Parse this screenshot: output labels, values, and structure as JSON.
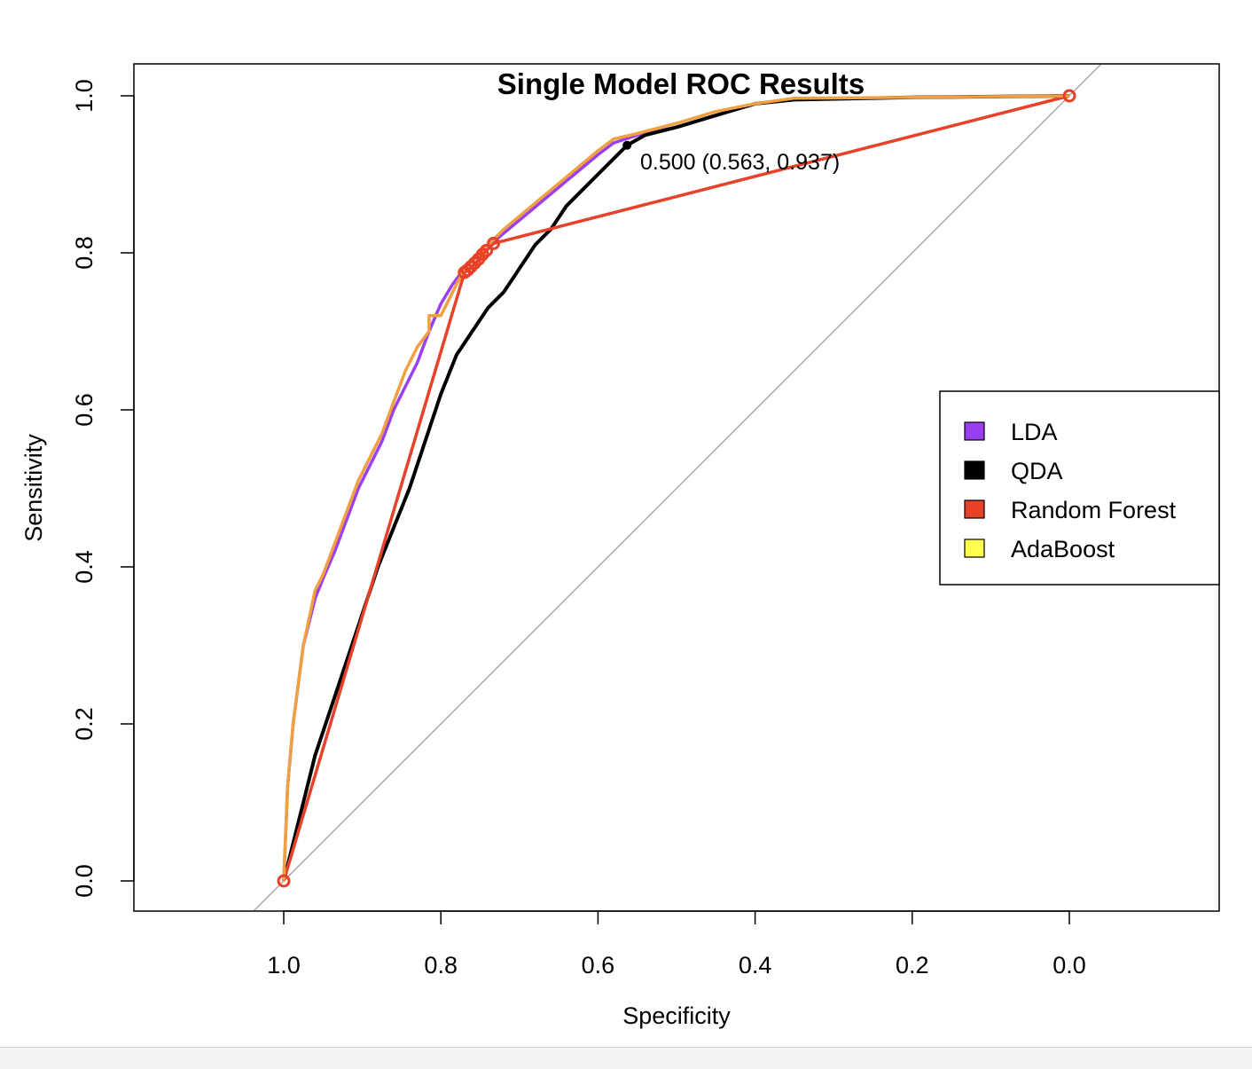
{
  "chart_data": {
    "type": "line",
    "title": "Single Model ROC Results",
    "xlabel": "Specificity",
    "ylabel": "Sensitivity",
    "xlim": [
      1.17,
      -0.19
    ],
    "ylim": [
      -0.04,
      1.04
    ],
    "x_reversed": true,
    "xticks": [
      1.0,
      0.8,
      0.6,
      0.4,
      0.2,
      0.0
    ],
    "xtick_labels": [
      "1.0",
      "0.8",
      "0.6",
      "0.4",
      "0.2",
      "0.0"
    ],
    "yticks": [
      0.0,
      0.2,
      0.4,
      0.6,
      0.8,
      1.0
    ],
    "ytick_labels": [
      "0.0",
      "0.2",
      "0.4",
      "0.6",
      "0.8",
      "1.0"
    ],
    "legend": {
      "placement": "right",
      "entries": [
        {
          "label": "LDA",
          "color": "#9a3ff0"
        },
        {
          "label": "QDA",
          "color": "#000000"
        },
        {
          "label": "Random Forest",
          "color": "#e8412a"
        },
        {
          "label": "AdaBoost",
          "color": "#ffff4d"
        }
      ]
    },
    "diagonal": {
      "color": "#a9a9a9",
      "from": [
        1,
        0
      ],
      "to": [
        0,
        1
      ]
    },
    "series": [
      {
        "color": "#9a3ff0",
        "points": [
          [
            1.0,
            0.0
          ],
          [
            0.995,
            0.12
          ],
          [
            0.988,
            0.2
          ],
          [
            0.975,
            0.3
          ],
          [
            0.96,
            0.36
          ],
          [
            0.95,
            0.385
          ],
          [
            0.935,
            0.42
          ],
          [
            0.92,
            0.46
          ],
          [
            0.905,
            0.5
          ],
          [
            0.89,
            0.53
          ],
          [
            0.875,
            0.56
          ],
          [
            0.86,
            0.6
          ],
          [
            0.845,
            0.63
          ],
          [
            0.83,
            0.66
          ],
          [
            0.815,
            0.7
          ],
          [
            0.8,
            0.735
          ],
          [
            0.785,
            0.76
          ],
          [
            0.77,
            0.78
          ],
          [
            0.75,
            0.8
          ],
          [
            0.72,
            0.825
          ],
          [
            0.69,
            0.85
          ],
          [
            0.66,
            0.875
          ],
          [
            0.63,
            0.9
          ],
          [
            0.6,
            0.925
          ],
          [
            0.58,
            0.94
          ],
          [
            0.55,
            0.95
          ],
          [
            0.5,
            0.96
          ],
          [
            0.45,
            0.975
          ],
          [
            0.4,
            0.99
          ],
          [
            0.35,
            0.995
          ],
          [
            0.2,
            0.998
          ],
          [
            0.0,
            1.0
          ]
        ]
      },
      {
        "color": "#000000",
        "points": [
          [
            1.0,
            0.0
          ],
          [
            0.98,
            0.08
          ],
          [
            0.96,
            0.16
          ],
          [
            0.94,
            0.22
          ],
          [
            0.92,
            0.28
          ],
          [
            0.9,
            0.34
          ],
          [
            0.88,
            0.4
          ],
          [
            0.86,
            0.45
          ],
          [
            0.84,
            0.5
          ],
          [
            0.82,
            0.56
          ],
          [
            0.8,
            0.62
          ],
          [
            0.78,
            0.67
          ],
          [
            0.76,
            0.7
          ],
          [
            0.74,
            0.73
          ],
          [
            0.72,
            0.75
          ],
          [
            0.7,
            0.78
          ],
          [
            0.68,
            0.81
          ],
          [
            0.66,
            0.83
          ],
          [
            0.64,
            0.86
          ],
          [
            0.62,
            0.88
          ],
          [
            0.6,
            0.9
          ],
          [
            0.58,
            0.92
          ],
          [
            0.563,
            0.937
          ],
          [
            0.54,
            0.95
          ],
          [
            0.5,
            0.96
          ],
          [
            0.45,
            0.975
          ],
          [
            0.4,
            0.99
          ],
          [
            0.35,
            0.995
          ],
          [
            0.2,
            0.998
          ],
          [
            0.0,
            1.0
          ]
        ]
      },
      {
        "color": "#e8412a",
        "points": [
          [
            1.0,
            0.0
          ],
          [
            0.77,
            0.775
          ],
          [
            0.76,
            0.785
          ],
          [
            0.75,
            0.795
          ],
          [
            0.74,
            0.805
          ],
          [
            0.73,
            0.812
          ],
          [
            0.0,
            1.0
          ],
          [
            0.763,
            0.78
          ],
          [
            0.753,
            0.79
          ],
          [
            0.745,
            0.8
          ]
        ],
        "markers": [
          [
            1.0,
            0.0
          ],
          [
            0.77,
            0.775
          ],
          [
            0.766,
            0.778
          ],
          [
            0.762,
            0.782
          ],
          [
            0.757,
            0.787
          ],
          [
            0.752,
            0.792
          ],
          [
            0.747,
            0.798
          ],
          [
            0.742,
            0.803
          ],
          [
            0.733,
            0.812
          ],
          [
            0.0,
            1.0
          ]
        ]
      },
      {
        "color": "#f0a040",
        "points": [
          [
            1.0,
            0.0
          ],
          [
            0.995,
            0.12
          ],
          [
            0.988,
            0.2
          ],
          [
            0.975,
            0.3
          ],
          [
            0.96,
            0.37
          ],
          [
            0.95,
            0.39
          ],
          [
            0.935,
            0.43
          ],
          [
            0.92,
            0.47
          ],
          [
            0.905,
            0.51
          ],
          [
            0.89,
            0.54
          ],
          [
            0.875,
            0.57
          ],
          [
            0.86,
            0.61
          ],
          [
            0.845,
            0.65
          ],
          [
            0.83,
            0.68
          ],
          [
            0.815,
            0.7
          ],
          [
            0.815,
            0.72
          ],
          [
            0.8,
            0.72
          ],
          [
            0.785,
            0.75
          ],
          [
            0.77,
            0.78
          ],
          [
            0.75,
            0.8
          ],
          [
            0.72,
            0.83
          ],
          [
            0.69,
            0.855
          ],
          [
            0.66,
            0.88
          ],
          [
            0.63,
            0.905
          ],
          [
            0.6,
            0.93
          ],
          [
            0.58,
            0.945
          ],
          [
            0.55,
            0.952
          ],
          [
            0.5,
            0.965
          ],
          [
            0.45,
            0.98
          ],
          [
            0.4,
            0.99
          ],
          [
            0.35,
            0.997
          ],
          [
            0.2,
            0.998
          ],
          [
            0.0,
            1.0
          ]
        ]
      }
    ],
    "annotation": {
      "text": "0.500 (0.563, 0.937)",
      "x": 0.563,
      "y": 0.937,
      "marker_color": "#000000"
    }
  }
}
